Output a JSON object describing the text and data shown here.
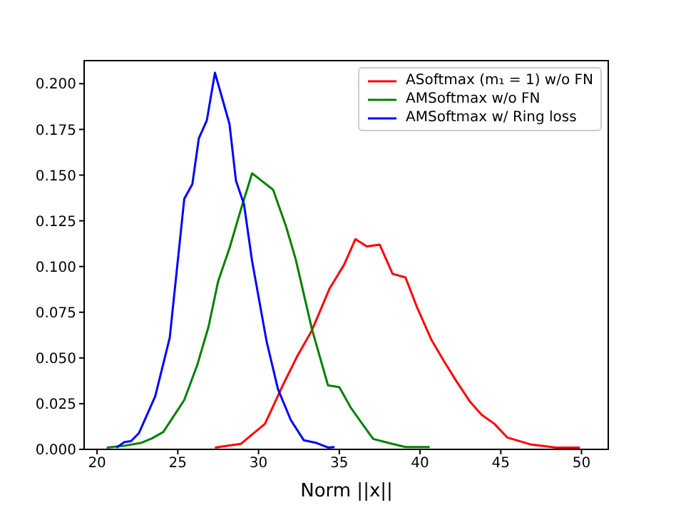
{
  "chart_data": {
    "type": "line",
    "xlabel": "Norm ||x||",
    "legend": "top right",
    "marker": "none",
    "line_style": "solid",
    "grid": false,
    "xlim": [
      19.2,
      51.7
    ],
    "xticks": [
      20,
      25,
      30,
      35,
      40,
      45,
      50
    ],
    "ylim": [
      0,
      0.213
    ],
    "yticks": [
      {
        "value": 0,
        "label": "0.000"
      },
      {
        "value": 0.025,
        "label": "0.025"
      },
      {
        "value": 0.05,
        "label": "0.050"
      },
      {
        "value": 0.075,
        "label": "0.075"
      },
      {
        "value": 0.1,
        "label": "0.100"
      },
      {
        "value": 0.125,
        "label": "0.125"
      },
      {
        "value": 0.15,
        "label": "0.150"
      },
      {
        "value": 0.175,
        "label": "0.175"
      },
      {
        "value": 0.2,
        "label": "0.200"
      }
    ],
    "series": [
      {
        "name": "ASoftmax (m₁ = 1) w/o FN",
        "color": "#ff0000",
        "x": [
          27.3,
          28.9,
          30.4,
          31.5,
          32.4,
          33.3,
          34.4,
          35.3,
          36.0,
          36.7,
          37.5,
          38.3,
          39.1,
          39.8,
          40.7,
          41.5,
          42.2,
          43.1,
          43.8,
          44.6,
          45.4,
          46.9,
          48.4,
          49.9
        ],
        "values": [
          0.001,
          0.003,
          0.014,
          0.035,
          0.051,
          0.065,
          0.088,
          0.101,
          0.115,
          0.111,
          0.112,
          0.096,
          0.094,
          0.078,
          0.06,
          0.048,
          0.038,
          0.026,
          0.019,
          0.014,
          0.0065,
          0.0026,
          0.001,
          0.001
        ]
      },
      {
        "name": "AMSoftmax w/o FN",
        "color": "#008000",
        "x": [
          20.6,
          21.7,
          22.7,
          23.4,
          24.1,
          25.4,
          26.2,
          26.9,
          27.5,
          28.2,
          28.9,
          29.6,
          30.9,
          31.7,
          32.3,
          33.3,
          34.3,
          35.0,
          35.7,
          36.5,
          37.1,
          38.1,
          39.1,
          40.6
        ],
        "values": [
          0.001,
          0.002,
          0.0035,
          0.006,
          0.0095,
          0.027,
          0.046,
          0.067,
          0.092,
          0.11,
          0.131,
          0.151,
          0.142,
          0.122,
          0.104,
          0.066,
          0.035,
          0.034,
          0.023,
          0.013,
          0.0057,
          0.0034,
          0.0013,
          0.0013
        ]
      },
      {
        "name": "AMSoftmax w/ Ring loss",
        "color": "#0000ff",
        "x": [
          21.2,
          21.7,
          22.1,
          22.6,
          23.6,
          24.5,
          25.4,
          25.9,
          26.3,
          26.8,
          27.3,
          28.2,
          28.6,
          29.1,
          29.6,
          30.5,
          31.2,
          32.0,
          32.8,
          33.6,
          34.3,
          34.7
        ],
        "values": [
          0.001,
          0.004,
          0.0045,
          0.009,
          0.029,
          0.061,
          0.137,
          0.145,
          0.17,
          0.18,
          0.206,
          0.178,
          0.147,
          0.134,
          0.103,
          0.059,
          0.033,
          0.016,
          0.005,
          0.0035,
          0.001,
          0.0013
        ]
      }
    ]
  }
}
